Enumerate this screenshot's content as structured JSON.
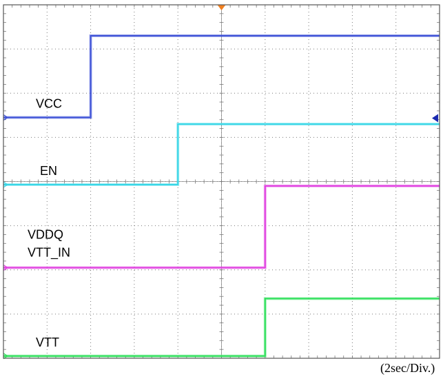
{
  "chart_data": {
    "type": "line",
    "title": "",
    "xlabel": "",
    "ylabel": "",
    "grid": true,
    "time_per_division": "(2sec/Div.)",
    "x_divisions": 10,
    "y_divisions": 8,
    "series": [
      {
        "name": "VCC",
        "labels": [
          "VCC"
        ],
        "color": "#3b4fd6",
        "low_div": 5.45,
        "high_div": 7.3,
        "rise_at_div": 2.0
      },
      {
        "name": "EN",
        "labels": [
          "EN"
        ],
        "color": "#38d6e6",
        "low_div": 3.93,
        "high_div": 5.3,
        "rise_at_div": 4.0
      },
      {
        "name": "VDDQ / VTT_IN",
        "labels": [
          "VDDQ",
          "VTT_IN"
        ],
        "color": "#e040e0",
        "low_div": 2.05,
        "high_div": 3.9,
        "rise_at_div": 6.0
      },
      {
        "name": "VTT",
        "labels": [
          "VTT"
        ],
        "color": "#2ee05a",
        "low_div": 0.05,
        "high_div": 1.35,
        "rise_at_div": 6.0
      }
    ]
  }
}
